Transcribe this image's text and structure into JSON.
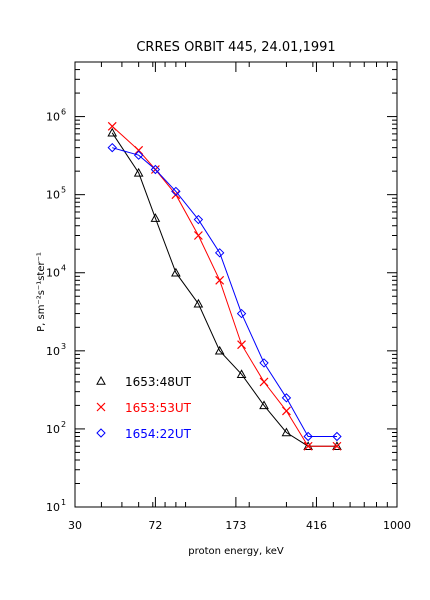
{
  "chart_data": {
    "type": "line",
    "title": "CRRES ORBIT 445, 24.01,1991",
    "xlabel": "proton energy, keV",
    "ylabel": "P, sm⁻²s⁻¹ster⁻¹",
    "x_scale": "log",
    "y_scale": "log",
    "xlim": [
      30,
      1000
    ],
    "ylim": [
      10,
      5000000
    ],
    "x_ticks": [
      30,
      72,
      173,
      416,
      1000
    ],
    "x_tick_labels": [
      "30",
      "72",
      "173",
      "416",
      "1000"
    ],
    "y_ticks": [
      10,
      100,
      1000,
      10000,
      100000,
      1000000
    ],
    "y_tick_labels": [
      {
        "base": "10",
        "exp": "1"
      },
      {
        "base": "10",
        "exp": "2"
      },
      {
        "base": "10",
        "exp": "3"
      },
      {
        "base": "10",
        "exp": "4"
      },
      {
        "base": "10",
        "exp": "5"
      },
      {
        "base": "10",
        "exp": "6"
      }
    ],
    "legend_position": "bottom-left",
    "series": [
      {
        "name": "1653:48UT",
        "color": "#000000",
        "marker": "triangle",
        "x": [
          45,
          60,
          72,
          90,
          115,
          145,
          184,
          235,
          300,
          380,
          520
        ],
        "y": [
          620000,
          190000,
          50000,
          10000,
          4000,
          1000,
          500,
          200,
          90,
          60,
          60
        ]
      },
      {
        "name": "1653:53UT",
        "color": "#ff0000",
        "marker": "x",
        "x": [
          45,
          60,
          72,
          90,
          115,
          145,
          184,
          235,
          300,
          380,
          520
        ],
        "y": [
          750000,
          370000,
          210000,
          100000,
          30000,
          8000,
          1200,
          400,
          170,
          60,
          60
        ]
      },
      {
        "name": "1654:22UT",
        "color": "#0000ff",
        "marker": "diamond",
        "x": [
          45,
          60,
          72,
          90,
          115,
          145,
          184,
          235,
          300,
          380,
          520
        ],
        "y": [
          400000,
          320000,
          210000,
          110000,
          48000,
          18000,
          3000,
          700,
          250,
          80,
          80
        ]
      }
    ]
  }
}
